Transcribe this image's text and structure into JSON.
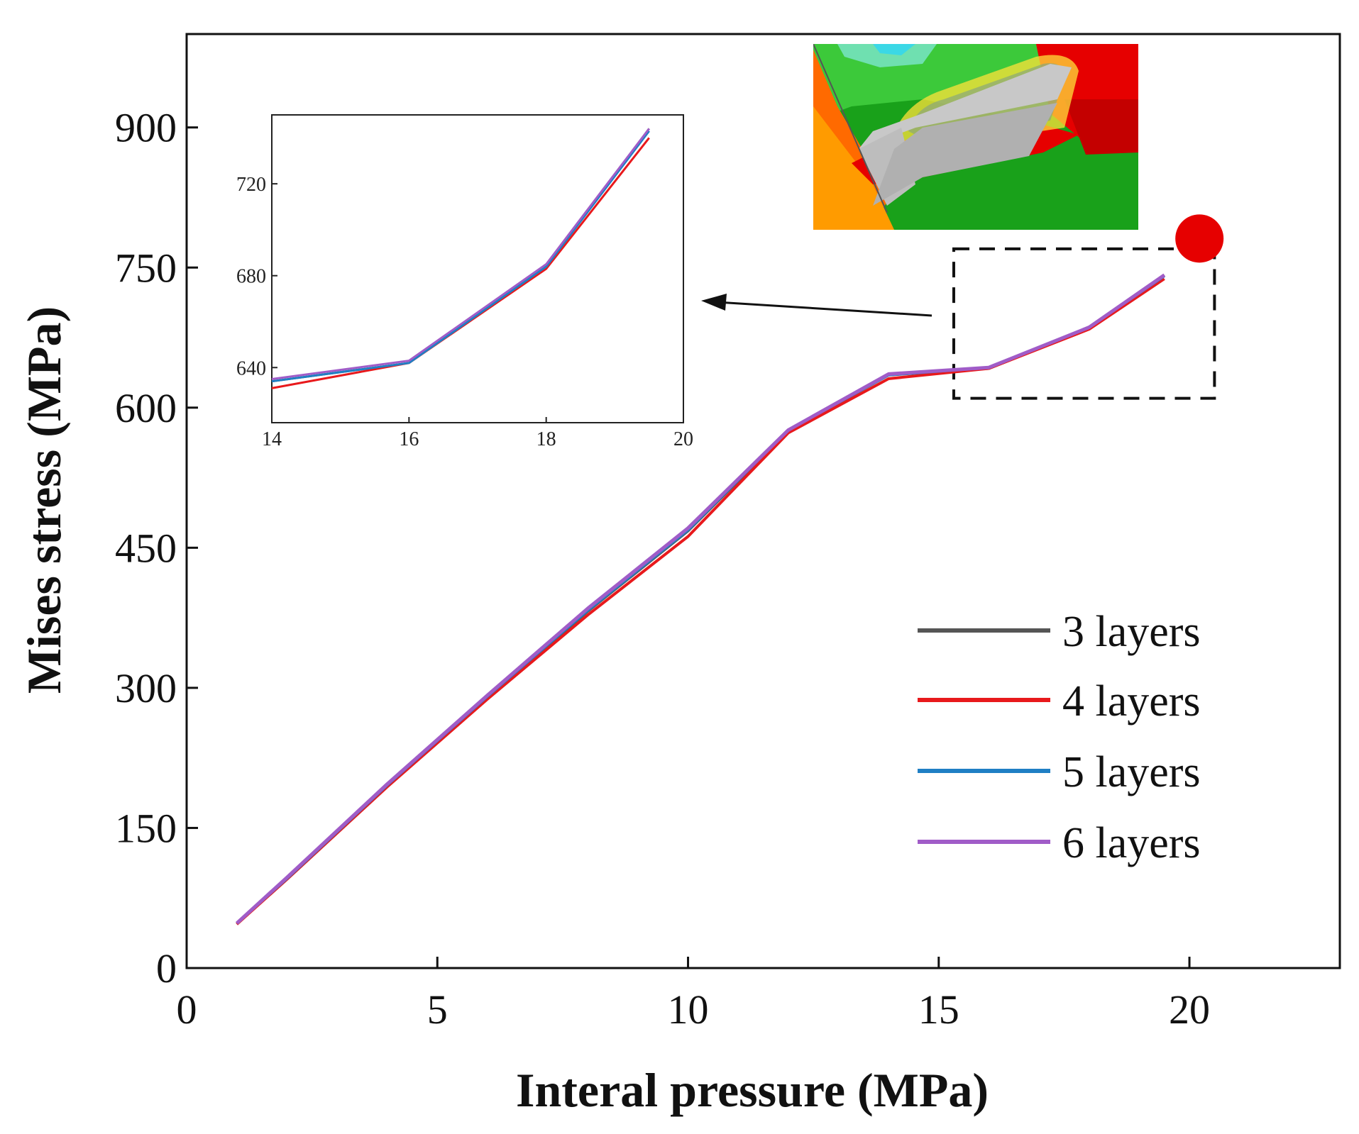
{
  "chart_data": {
    "type": "line",
    "title": "",
    "xlabel": "Interal pressure (MPa)",
    "ylabel": "Mises stress (MPa)",
    "xlim": [
      0,
      23
    ],
    "ylim": [
      0,
      1000
    ],
    "x_ticks": [
      0,
      5,
      10,
      15,
      20
    ],
    "y_ticks": [
      0,
      150,
      300,
      450,
      600,
      750,
      900
    ],
    "grid": false,
    "legend_position": "bottom-right",
    "x": [
      1,
      2,
      4,
      6,
      8,
      10,
      12,
      14,
      16,
      18,
      19.5
    ],
    "series": [
      {
        "name": "3 layers",
        "color": "#555555",
        "values": [
          47,
          96,
          196,
          290,
          382,
          468,
          575,
          635,
          642,
          685,
          742
        ]
      },
      {
        "name": "4 layers",
        "color": "#e8191c",
        "values": [
          47,
          95,
          194,
          288,
          378,
          462,
          573,
          631,
          642,
          684,
          738
        ]
      },
      {
        "name": "5 layers",
        "color": "#1f7fc4",
        "values": [
          48,
          96,
          196,
          291,
          383,
          469,
          576,
          635,
          643,
          686,
          741
        ]
      },
      {
        "name": "6 layers",
        "color": "#a05cc8",
        "values": [
          48,
          97,
          197,
          292,
          385,
          471,
          576,
          636,
          643,
          686,
          742
        ]
      }
    ],
    "inset": {
      "xlim": [
        14,
        20
      ],
      "ylim": [
        616,
        750
      ],
      "x_ticks": [
        14,
        16,
        18,
        20
      ],
      "y_ticks": [
        640,
        680,
        720
      ],
      "x": [
        14,
        16,
        18,
        19.5
      ],
      "series": [
        {
          "name": "3 layers",
          "values": [
            634,
            642,
            684,
            744
          ]
        },
        {
          "name": "4 layers",
          "values": [
            631,
            642,
            683,
            740
          ]
        },
        {
          "name": "5 layers",
          "values": [
            634,
            642,
            684,
            743
          ]
        },
        {
          "name": "6 layers",
          "values": [
            635,
            643,
            685,
            744
          ]
        }
      ]
    },
    "zoom_region": {
      "x": [
        15.3,
        20.5
      ],
      "y": [
        610,
        770
      ]
    },
    "marker": {
      "x": 20.2,
      "y": 775,
      "color": "#e60000"
    }
  }
}
